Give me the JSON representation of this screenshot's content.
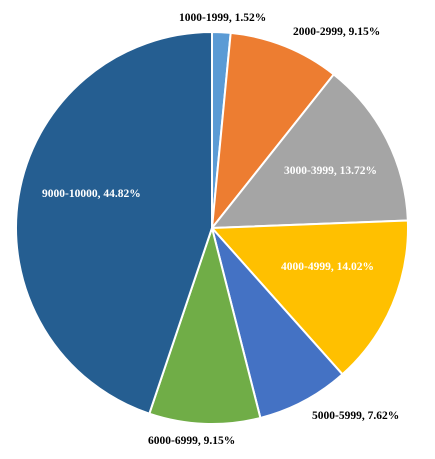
{
  "chart_data": {
    "type": "pie",
    "title": "",
    "labels": [
      "1000-1999, 1.52%",
      "2000-2999, 9.15%",
      "3000-3999, 13.72%",
      "4000-4999, 14.02%",
      "5000-5999, 7.62%",
      "6000-6999, 9.15%",
      "9000-10000, 44.82%"
    ],
    "categories": [
      "1000-1999",
      "2000-2999",
      "3000-3999",
      "4000-4999",
      "5000-5999",
      "6000-6999",
      "9000-10000"
    ],
    "values": [
      1.52,
      9.15,
      13.72,
      14.02,
      7.62,
      9.15,
      44.82
    ],
    "colors": [
      "#5B9BD5",
      "#ED7D31",
      "#A5A5A5",
      "#FFC000",
      "#4472C4",
      "#70AD47",
      "#255E91"
    ],
    "label_colors": [
      "#000000",
      "#000000",
      "#ffffff",
      "#ffffff",
      "#000000",
      "#000000",
      "#ffffff"
    ],
    "start_angle_deg": 0,
    "direction": "clockwise",
    "legend": "none"
  }
}
